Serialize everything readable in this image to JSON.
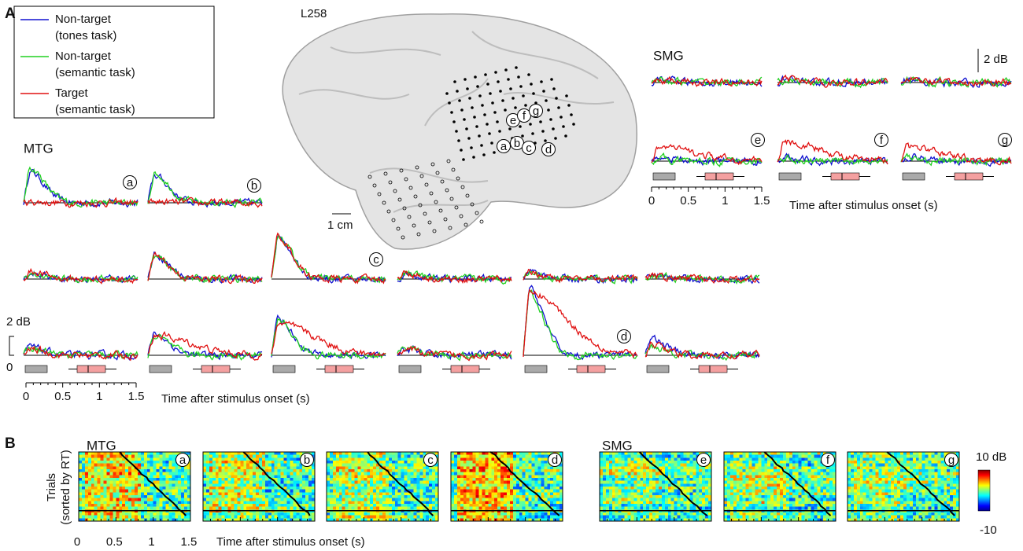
{
  "panel_labels": [
    "A",
    "B"
  ],
  "subject": "L258",
  "legend": [
    {
      "lines": [
        "Non-target",
        "(tones task)"
      ],
      "color": "#1010d0"
    },
    {
      "lines": [
        "Non-target",
        "(semantic task)"
      ],
      "color": "#20d020"
    },
    {
      "lines": [
        "Target",
        "(semantic task)"
      ],
      "color": "#e01010"
    }
  ],
  "regions": {
    "mtg": "MTG",
    "smg": "SMG"
  },
  "scale": {
    "db": "2 dB",
    "cm": "1 cm",
    "zero": "0"
  },
  "time_axis": {
    "ticks": [
      "0",
      "0.5",
      "1",
      "1.5"
    ],
    "label": "Time after stimulus onset (s)"
  },
  "electrodes": [
    "a",
    "b",
    "c",
    "d",
    "e",
    "f",
    "g"
  ],
  "trials_label": [
    "Trials",
    "(sorted by RT)"
  ],
  "colorbar": {
    "max": "10 dB",
    "min": "-10"
  }
}
